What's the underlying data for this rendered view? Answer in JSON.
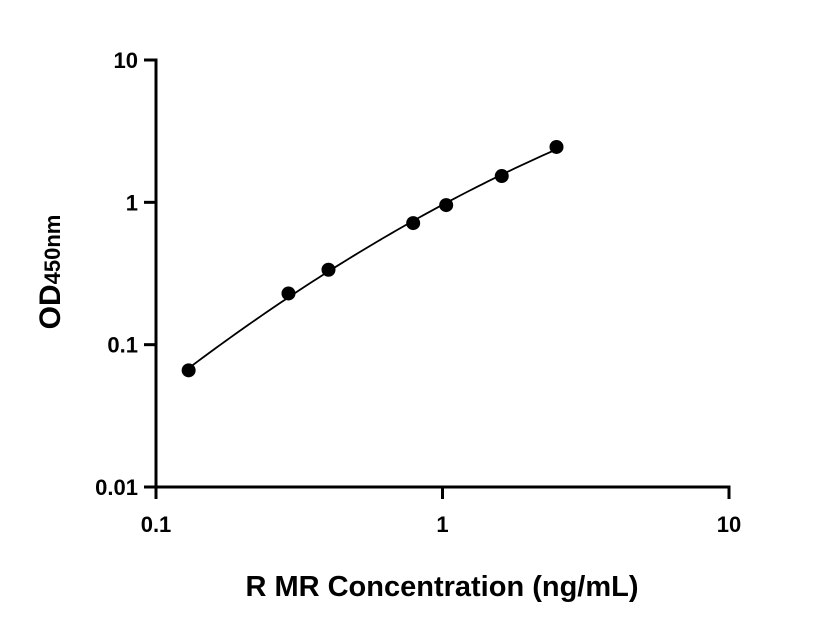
{
  "chart_data": {
    "type": "scatter",
    "x_scale": "log",
    "y_scale": "log",
    "xlim": [
      0.1,
      10
    ],
    "ylim": [
      0.01,
      10
    ],
    "x_ticks": [
      0.1,
      1,
      10
    ],
    "x_tick_labels": [
      "0.1",
      "1",
      "10"
    ],
    "y_ticks": [
      0.01,
      0.1,
      1,
      10
    ],
    "y_tick_labels": [
      "0.01",
      "0.1",
      "1",
      "10"
    ],
    "xlabel": "R MR Concentration (ng/mL)",
    "ylabel_main": "OD",
    "ylabel_sub": "450nm",
    "grid": false,
    "legend": "none",
    "series": [
      {
        "x": [
          0.13,
          0.29,
          0.4,
          0.79,
          1.03,
          1.61,
          2.5
        ],
        "y": [
          0.066,
          0.229,
          0.336,
          0.715,
          0.956,
          1.53,
          2.45
        ],
        "fit_curve": true
      }
    ],
    "colors": {
      "points": "#000000",
      "curve": "#000000",
      "axes": "#000000"
    }
  }
}
